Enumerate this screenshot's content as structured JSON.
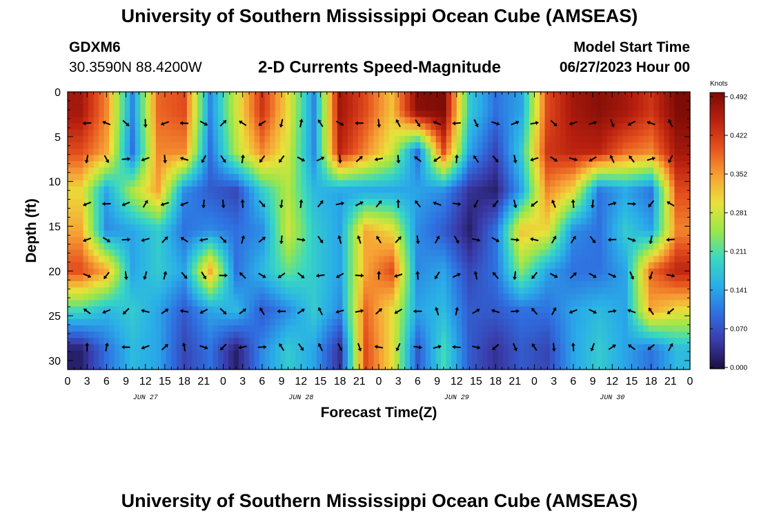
{
  "header": {
    "title_top": "University of Southern Mississippi Ocean Cube (AMSEAS)",
    "station": "GDXM6",
    "coords": "30.3590N  88.4200W",
    "product": "2-D Currents Speed-Magnitude",
    "model_start_label": "Model Start Time",
    "model_start_value": "06/27/2023 Hour 00",
    "title_bottom": "University of Southern Mississippi Ocean Cube (AMSEAS)"
  },
  "chart_data": {
    "type": "heatmap",
    "title": "2-D Currents Speed-Magnitude",
    "xlabel": "Forecast Time(Z)",
    "ylabel": "Depth (ft)",
    "x_tick_labels": [
      "0",
      "3",
      "6",
      "9",
      "12",
      "15",
      "18",
      "21",
      "0",
      "3",
      "6",
      "9",
      "12",
      "15",
      "18",
      "21",
      "0",
      "3",
      "6",
      "9",
      "12",
      "15",
      "18",
      "21",
      "0",
      "3",
      "6",
      "9",
      "12",
      "15",
      "18",
      "21",
      "0"
    ],
    "date_labels": [
      {
        "label": "JUN 27",
        "hour": 12
      },
      {
        "label": "JUN 28",
        "hour": 36
      },
      {
        "label": "JUN 29",
        "hour": 60
      },
      {
        "label": "JUN 30",
        "hour": 84
      }
    ],
    "xlim_hours": [
      0,
      96
    ],
    "y_ticks": [
      0,
      5,
      10,
      15,
      20,
      25,
      30
    ],
    "ylim_ft": [
      0,
      31
    ],
    "colorbar": {
      "title": "Knots",
      "ticks": [
        "0.492",
        "0.422",
        "0.352",
        "0.281",
        "0.211",
        "0.141",
        "0.070",
        "0.000"
      ],
      "min": 0.0,
      "max": 0.492
    },
    "depth_rows_ft": [
      3.5,
      7.5,
      12.5,
      16.5,
      20.5,
      24.5,
      28.5
    ],
    "speed_grid_knots": [
      [
        0.46,
        0.36,
        0.12,
        0.38,
        0.4,
        0.12,
        0.28,
        0.42,
        0.3,
        0.12,
        0.46,
        0.4,
        0.32,
        0.48,
        0.49,
        0.18,
        0.1,
        0.14,
        0.4,
        0.46,
        0.48,
        0.46,
        0.42,
        0.49
      ],
      [
        0.4,
        0.34,
        0.1,
        0.36,
        0.36,
        0.1,
        0.26,
        0.36,
        0.28,
        0.12,
        0.44,
        0.36,
        0.28,
        0.1,
        0.4,
        0.14,
        0.06,
        0.18,
        0.42,
        0.44,
        0.44,
        0.38,
        0.36,
        0.46
      ],
      [
        0.3,
        0.14,
        0.26,
        0.34,
        0.12,
        0.08,
        0.06,
        0.18,
        0.26,
        0.16,
        0.14,
        0.14,
        0.14,
        0.14,
        0.12,
        0.04,
        0.02,
        0.14,
        0.36,
        0.3,
        0.1,
        0.14,
        0.1,
        0.4
      ],
      [
        0.34,
        0.12,
        0.14,
        0.18,
        0.1,
        0.12,
        0.1,
        0.12,
        0.28,
        0.18,
        0.14,
        0.34,
        0.3,
        0.12,
        0.08,
        0.02,
        0.1,
        0.32,
        0.3,
        0.12,
        0.1,
        0.18,
        0.14,
        0.36
      ],
      [
        0.4,
        0.34,
        0.14,
        0.18,
        0.14,
        0.34,
        0.1,
        0.16,
        0.22,
        0.18,
        0.14,
        0.34,
        0.4,
        0.12,
        0.14,
        0.06,
        0.1,
        0.24,
        0.14,
        0.1,
        0.1,
        0.14,
        0.38,
        0.44
      ],
      [
        0.2,
        0.16,
        0.18,
        0.14,
        0.08,
        0.14,
        0.16,
        0.08,
        0.12,
        0.18,
        0.12,
        0.38,
        0.3,
        0.14,
        0.16,
        0.08,
        0.08,
        0.1,
        0.1,
        0.14,
        0.16,
        0.14,
        0.34,
        0.3
      ],
      [
        0.02,
        0.1,
        0.16,
        0.14,
        0.06,
        0.1,
        0.02,
        0.12,
        0.18,
        0.14,
        0.04,
        0.4,
        0.3,
        0.08,
        0.2,
        0.08,
        0.04,
        0.08,
        0.06,
        0.14,
        0.18,
        0.14,
        0.1,
        0.16
      ]
    ]
  }
}
